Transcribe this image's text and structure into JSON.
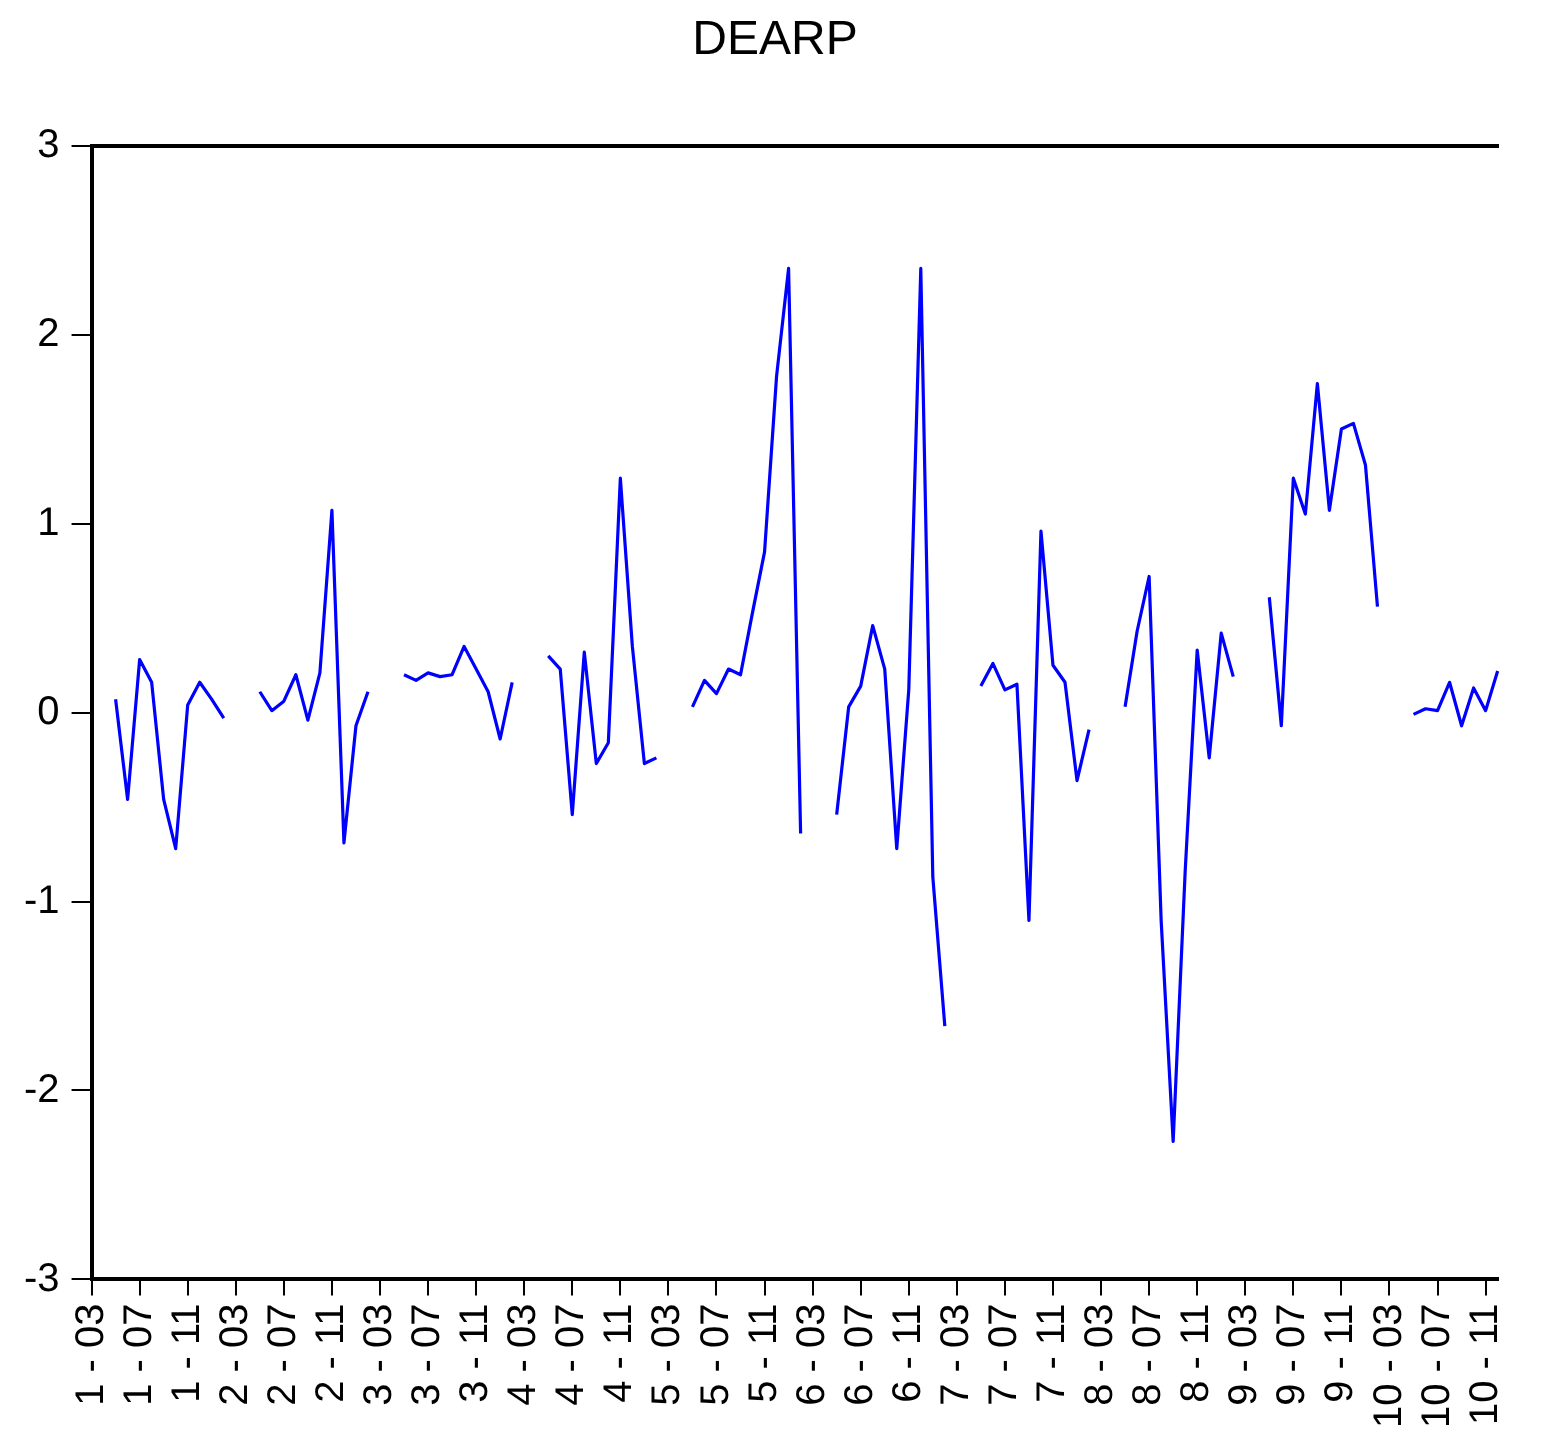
{
  "chart_data": {
    "type": "line",
    "title": "DEARP",
    "categories": [
      "1 - 03",
      null,
      null,
      null,
      "1 - 07",
      null,
      null,
      null,
      "1 - 11",
      null,
      null,
      null,
      "2 - 03",
      null,
      null,
      null,
      "2 - 07",
      null,
      null,
      null,
      "2 - 11",
      null,
      null,
      null,
      "3 - 03",
      null,
      null,
      null,
      "3 - 07",
      null,
      null,
      null,
      "3 - 11",
      null,
      null,
      null,
      "4 - 03",
      null,
      null,
      null,
      "4 - 07",
      null,
      null,
      null,
      "4 - 11",
      null,
      null,
      null,
      "5 - 03",
      null,
      null,
      null,
      "5 - 07",
      null,
      null,
      null,
      "5 - 11",
      null,
      null,
      null,
      "6 - 03",
      null,
      null,
      null,
      "6 - 07",
      null,
      null,
      null,
      "6 - 11",
      null,
      null,
      null,
      "7 - 03",
      null,
      null,
      null,
      "7 - 07",
      null,
      null,
      null,
      "7 - 11",
      null,
      null,
      null,
      "8 - 03",
      null,
      null,
      null,
      "8 - 07",
      null,
      null,
      null,
      "8 - 11",
      null,
      null,
      null,
      "9 - 03",
      null,
      null,
      null,
      "9 - 07",
      null,
      null,
      null,
      "9 - 11",
      null,
      null,
      null,
      "10 - 03",
      null,
      null,
      null,
      "10 - 07",
      null,
      null,
      null,
      "10 - 11",
      null
    ],
    "values": [
      null,
      null,
      0.07,
      -0.46,
      0.28,
      0.16,
      -0.46,
      -0.72,
      0.04,
      0.16,
      0.07,
      -0.03,
      null,
      null,
      0.11,
      0.01,
      0.06,
      0.2,
      -0.04,
      0.21,
      1.07,
      -0.69,
      -0.07,
      0.11,
      null,
      null,
      0.2,
      0.17,
      0.21,
      0.19,
      0.2,
      0.35,
      0.23,
      0.11,
      -0.14,
      0.16,
      null,
      null,
      0.3,
      0.23,
      -0.54,
      0.32,
      -0.27,
      -0.16,
      1.24,
      0.35,
      -0.27,
      -0.24,
      null,
      null,
      0.03,
      0.17,
      0.1,
      0.23,
      0.2,
      0.53,
      0.85,
      1.78,
      2.35,
      -0.64,
      null,
      null,
      -0.54,
      0.03,
      0.14,
      0.46,
      0.23,
      -0.72,
      0.12,
      2.35,
      -0.87,
      -1.66,
      null,
      null,
      0.14,
      0.26,
      0.12,
      0.15,
      -1.1,
      0.96,
      0.25,
      0.16,
      -0.36,
      -0.09,
      null,
      null,
      0.03,
      0.43,
      0.72,
      -1.1,
      -2.27,
      -0.84,
      0.33,
      -0.24,
      0.42,
      0.19,
      null,
      null,
      0.61,
      -0.07,
      1.24,
      1.05,
      1.74,
      1.07,
      1.5,
      1.53,
      1.31,
      0.56,
      null,
      null,
      -0.01,
      0.02,
      0.01,
      0.16,
      -0.07,
      0.13,
      0.01,
      0.22
    ],
    "color": "#0000ff",
    "ylim": [
      -3,
      3
    ],
    "yticks": [
      -3,
      -2,
      -1,
      0,
      1,
      2,
      3
    ],
    "grid": false
  }
}
